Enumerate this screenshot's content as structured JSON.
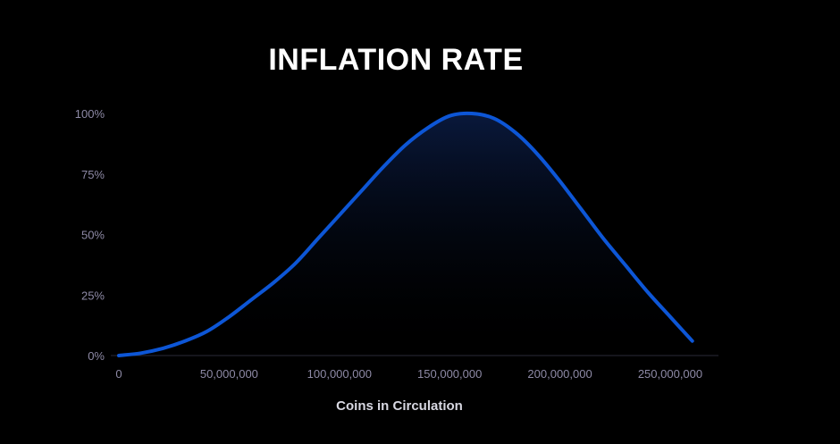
{
  "chart_data": {
    "type": "area",
    "title": "INFLATION RATE",
    "xlabel": "Coins in Circulation",
    "ylabel": "",
    "x_ticks": [
      {
        "value": 0,
        "label": "0"
      },
      {
        "value": 50000000,
        "label": "50,000,000"
      },
      {
        "value": 100000000,
        "label": "100,000,000"
      },
      {
        "value": 150000000,
        "label": "150,000,000"
      },
      {
        "value": 200000000,
        "label": "200,000,000"
      },
      {
        "value": 250000000,
        "label": "250,000,000"
      }
    ],
    "y_ticks": [
      {
        "value": 0,
        "label": "0%"
      },
      {
        "value": 25,
        "label": "25%"
      },
      {
        "value": 50,
        "label": "50%"
      },
      {
        "value": 75,
        "label": "75%"
      },
      {
        "value": 100,
        "label": "100%"
      }
    ],
    "xlim": [
      0,
      265000000
    ],
    "ylim": [
      0,
      100
    ],
    "grid": false,
    "series": [
      {
        "x": [
          0,
          10000000,
          20000000,
          30000000,
          40000000,
          50000000,
          60000000,
          70000000,
          80000000,
          90000000,
          100000000,
          110000000,
          120000000,
          130000000,
          140000000,
          150000000,
          160000000,
          170000000,
          180000000,
          190000000,
          200000000,
          210000000,
          220000000,
          230000000,
          240000000,
          250000000,
          260000000
        ],
        "values": [
          0,
          1,
          3,
          6,
          10,
          16,
          23,
          30,
          38,
          48,
          58,
          68,
          78,
          87,
          94,
          99,
          100,
          98,
          92,
          83,
          72,
          60,
          48,
          37,
          26,
          16,
          6
        ]
      }
    ],
    "colors": {
      "line": "#0d56d6",
      "fill_top": "#0a1a3f",
      "axis": "#2a2a38",
      "tick_text": "#8e8aa6",
      "title": "#ffffff",
      "xlabel": "#d8d8e2"
    }
  }
}
